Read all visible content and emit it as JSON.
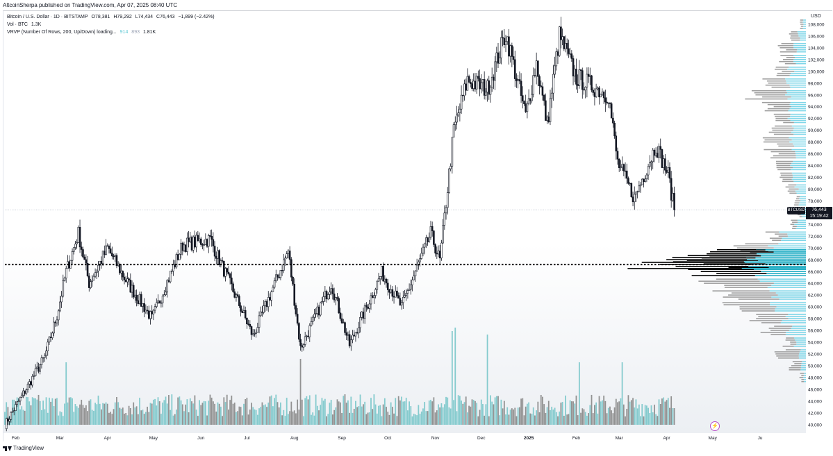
{
  "header": {
    "publisher": "AltcoinSherpa published on TradingView.com, Apr 07, 2025 08:40 UTC"
  },
  "legend": {
    "line1": {
      "symbol": "Bitcoin / U.S. Dollar · 1D · BITSTAMP",
      "open": "O78,381",
      "high": "H79,292",
      "low": "L74,434",
      "close": "C76,443",
      "change": "−1,899 (−2.42%)"
    },
    "line2": {
      "label": "Vol · BTC",
      "value": "1.3K"
    },
    "line3": {
      "label": "VRVP (Number Of Rows, 200, Up/Down) loading...",
      "up": "914",
      "down": "893",
      "total": "1.81K"
    }
  },
  "axis": {
    "currency": "USD",
    "last_price": "76,443",
    "countdown": "15:19:42",
    "symbol_tag": "BTCUSD"
  },
  "footer": {
    "brand": "TradingView"
  },
  "colors": {
    "candle": "#131722",
    "volume_up": "#7ec8cb",
    "volume_down": "#8c8c8c",
    "vp_up": "#7fd6e8",
    "vp_down": "#9e9e9e",
    "poc": "#000000",
    "value_area_fill": "#2ab0c6"
  },
  "chart_data": {
    "type": "candlestick",
    "title": "Bitcoin / U.S. Dollar · 1D · BITSTAMP",
    "ylabel": "USD",
    "ylim": [
      38800,
      110000
    ],
    "y_ticks": [
      40000,
      42000,
      44000,
      46000,
      48000,
      50000,
      52000,
      54000,
      56000,
      58000,
      60000,
      62000,
      64000,
      66000,
      68000,
      70000,
      72000,
      74000,
      76000,
      78000,
      80000,
      82000,
      84000,
      86000,
      88000,
      90000,
      92000,
      94000,
      96000,
      98000,
      100000,
      102000,
      104000,
      106000,
      108000
    ],
    "x_ticks": [
      "Feb",
      "Mar",
      "Apr",
      "May",
      "Jun",
      "Jul",
      "Aug",
      "Sep",
      "Oct",
      "Nov",
      "Dec",
      "2025",
      "Feb",
      "Mar",
      "Apr",
      "May",
      "Ju"
    ],
    "price_path": [
      {
        "date": "2024-01-25",
        "price": 40000
      },
      {
        "date": "2024-02-10",
        "price": 47000
      },
      {
        "date": "2024-02-20",
        "price": 51500
      },
      {
        "date": "2024-02-28",
        "price": 58500
      },
      {
        "date": "2024-03-05",
        "price": 66000
      },
      {
        "date": "2024-03-13",
        "price": 72500
      },
      {
        "date": "2024-03-20",
        "price": 64000
      },
      {
        "date": "2024-04-01",
        "price": 70000
      },
      {
        "date": "2024-04-13",
        "price": 64500
      },
      {
        "date": "2024-04-30",
        "price": 58000
      },
      {
        "date": "2024-05-20",
        "price": 70500
      },
      {
        "date": "2024-06-07",
        "price": 71500
      },
      {
        "date": "2024-06-25",
        "price": 61000
      },
      {
        "date": "2024-07-05",
        "price": 55000
      },
      {
        "date": "2024-07-28",
        "price": 69500
      },
      {
        "date": "2024-08-05",
        "price": 53000
      },
      {
        "date": "2024-08-25",
        "price": 64000
      },
      {
        "date": "2024-09-06",
        "price": 53500
      },
      {
        "date": "2024-09-27",
        "price": 65800
      },
      {
        "date": "2024-10-10",
        "price": 60000
      },
      {
        "date": "2024-10-29",
        "price": 72500
      },
      {
        "date": "2024-11-04",
        "price": 67800
      },
      {
        "date": "2024-11-13",
        "price": 90000
      },
      {
        "date": "2024-11-22",
        "price": 98500
      },
      {
        "date": "2024-12-05",
        "price": 97000
      },
      {
        "date": "2024-12-17",
        "price": 106500
      },
      {
        "date": "2024-12-30",
        "price": 92500
      },
      {
        "date": "2025-01-06",
        "price": 101500
      },
      {
        "date": "2025-01-13",
        "price": 91000
      },
      {
        "date": "2025-01-21",
        "price": 106000
      },
      {
        "date": "2025-02-01",
        "price": 99000
      },
      {
        "date": "2025-02-22",
        "price": 96000
      },
      {
        "date": "2025-02-28",
        "price": 84500
      },
      {
        "date": "2025-03-11",
        "price": 78500
      },
      {
        "date": "2025-03-25",
        "price": 87500
      },
      {
        "date": "2025-04-02",
        "price": 82500
      },
      {
        "date": "2025-04-06",
        "price": 76443
      }
    ],
    "last_close": 76443,
    "poc_level": 67200,
    "volume_profile": {
      "value_area": [
        65300,
        69800
      ],
      "rows": [
        {
          "price": 48000,
          "up": 6,
          "down": 8
        },
        {
          "price": 50000,
          "up": 10,
          "down": 22
        },
        {
          "price": 52000,
          "up": 16,
          "down": 48
        },
        {
          "price": 54000,
          "up": 26,
          "down": 20
        },
        {
          "price": 56000,
          "up": 40,
          "down": 48
        },
        {
          "price": 58000,
          "up": 54,
          "down": 60
        },
        {
          "price": 60000,
          "up": 68,
          "down": 90
        },
        {
          "price": 62000,
          "up": 80,
          "down": 110
        },
        {
          "price": 64000,
          "up": 96,
          "down": 130
        },
        {
          "price": 66000,
          "up": 112,
          "down": 120
        },
        {
          "price": 67200,
          "up": 126,
          "down": 220
        },
        {
          "price": 68000,
          "up": 118,
          "down": 150
        },
        {
          "price": 69000,
          "up": 104,
          "down": 110
        },
        {
          "price": 70000,
          "up": 80,
          "down": 70
        },
        {
          "price": 72000,
          "up": 50,
          "down": 30
        },
        {
          "price": 74000,
          "up": 22,
          "down": 12
        },
        {
          "price": 76000,
          "up": 10,
          "down": 8
        },
        {
          "price": 78000,
          "up": 14,
          "down": 10
        },
        {
          "price": 80000,
          "up": 22,
          "down": 18
        },
        {
          "price": 82000,
          "up": 28,
          "down": 24
        },
        {
          "price": 84000,
          "up": 30,
          "down": 40
        },
        {
          "price": 86000,
          "up": 30,
          "down": 54
        },
        {
          "price": 88000,
          "up": 32,
          "down": 50
        },
        {
          "price": 90000,
          "up": 34,
          "down": 40
        },
        {
          "price": 92000,
          "up": 36,
          "down": 30
        },
        {
          "price": 94000,
          "up": 38,
          "down": 56
        },
        {
          "price": 96000,
          "up": 42,
          "down": 80
        },
        {
          "price": 98000,
          "up": 40,
          "down": 56
        },
        {
          "price": 100000,
          "up": 36,
          "down": 30
        },
        {
          "price": 102000,
          "up": 30,
          "down": 26
        },
        {
          "price": 104000,
          "up": 24,
          "down": 30
        },
        {
          "price": 106000,
          "up": 16,
          "down": 20
        },
        {
          "price": 108000,
          "up": 6,
          "down": 6
        }
      ]
    },
    "volume_peaks": [
      {
        "date": "2024-03-05",
        "rel": 0.5
      },
      {
        "date": "2024-08-05",
        "rel": 0.55
      },
      {
        "date": "2024-11-12",
        "rel": 0.95
      },
      {
        "date": "2024-11-14",
        "rel": 1.0
      },
      {
        "date": "2024-12-05",
        "rel": 0.9
      },
      {
        "date": "2025-02-03",
        "rel": 0.5
      },
      {
        "date": "2025-03-03",
        "rel": 0.5
      }
    ]
  }
}
